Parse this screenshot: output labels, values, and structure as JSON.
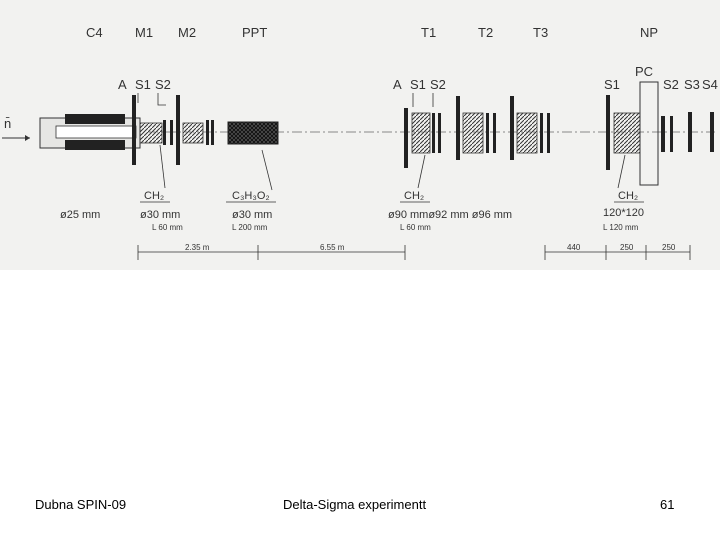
{
  "diagram": {
    "station_labels": [
      "C4",
      "M1",
      "M2",
      "PPT",
      "T1",
      "T2",
      "T3",
      "NP"
    ],
    "counter_labels_left": {
      "a": "A",
      "s1": "S1",
      "s2": "S2"
    },
    "counter_labels_mid": {
      "a": "A",
      "s1": "S1",
      "s2": "S2"
    },
    "counter_labels_right": {
      "s1": "S1",
      "pc": "PC",
      "s2": "S2",
      "s3": "S3",
      "s4": "S4"
    },
    "beam_label": "n̄",
    "targets": {
      "ch2_left": "CH₂",
      "ppt": "C₃H₃O₂",
      "ch2_mid": "CH₂",
      "ch2_right": "CH₂"
    },
    "dimensions": {
      "d_c4": "ø25  mm",
      "d_m": "ø30  mm",
      "l_m": "L 60 mm",
      "d_ppt": "ø30  mm",
      "l_ppt": "L 200 mm",
      "d_t": "ø90  mmø92  mm  ø96  mm",
      "l_t": "L 60 mm",
      "d_np": "120*120",
      "l_np": "L 120 mm"
    },
    "scale": [
      "2.35 m",
      "6.55 m",
      "440",
      "250",
      "250"
    ]
  },
  "footer": {
    "left": "Dubna SPIN-09",
    "center": "Delta-Sigma experimentt",
    "right": "61"
  }
}
